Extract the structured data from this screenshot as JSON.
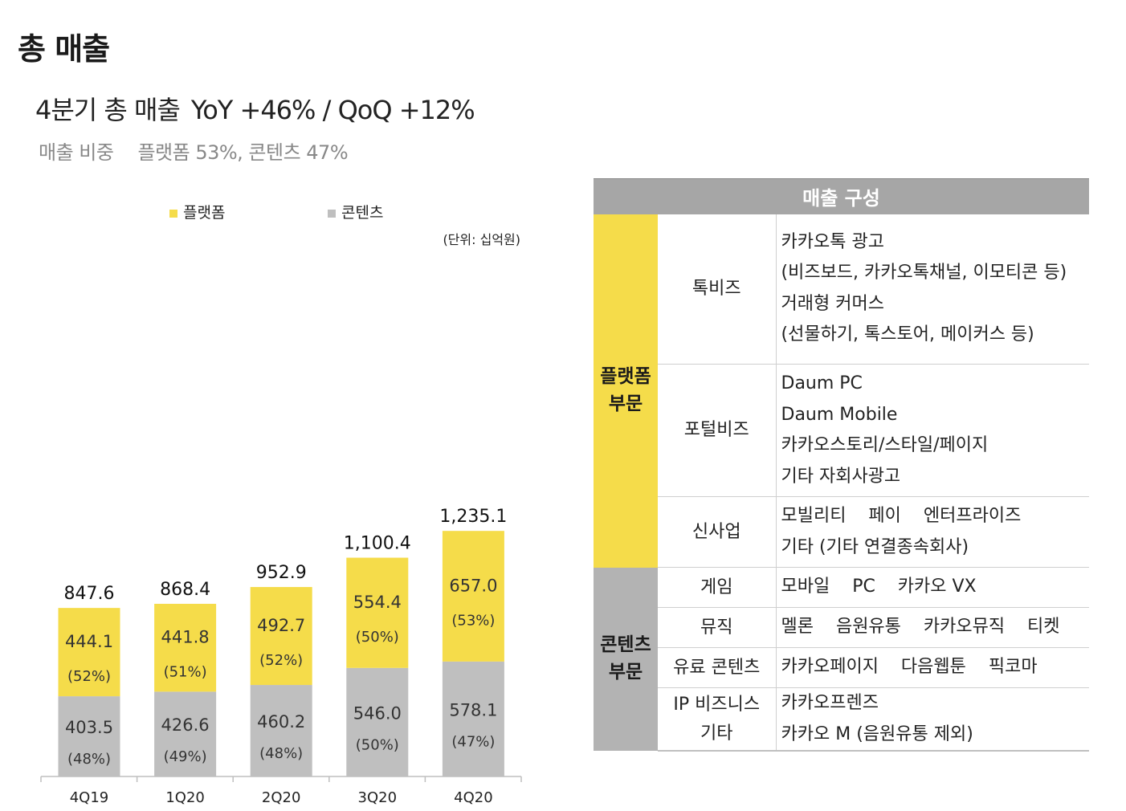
{
  "page_title": "총 매출",
  "headline": {
    "main": "4분기 총 매출",
    "growth": "YoY +46% / QoQ +12%"
  },
  "subline": {
    "label": "매출 비중",
    "value": "플랫폼 53%, 콘텐츠 47%"
  },
  "colors": {
    "platform": "#f5dc4a",
    "content": "#bfbfbf",
    "header": "#a6a6a6"
  },
  "chart_data": {
    "type": "bar",
    "stacked": true,
    "unit_note": "(단위: 십억원)",
    "categories": [
      "4Q19",
      "1Q20",
      "2Q20",
      "3Q20",
      "4Q20"
    ],
    "series": [
      {
        "name": "플랫폼",
        "values": [
          444.1,
          441.8,
          492.7,
          554.4,
          657.0
        ],
        "labels": [
          "444.1",
          "441.8",
          "492.7",
          "554.4",
          "657.0"
        ],
        "shares": [
          "(52%)",
          "(51%)",
          "(52%)",
          "(50%)",
          "(53%)"
        ]
      },
      {
        "name": "콘텐츠",
        "values": [
          403.5,
          426.6,
          460.2,
          546.0,
          578.1
        ],
        "labels": [
          "403.5",
          "426.6",
          "460.2",
          "546.0",
          "578.1"
        ],
        "shares": [
          "(48%)",
          "(49%)",
          "(48%)",
          "(50%)",
          "(47%)"
        ]
      }
    ],
    "totals": [
      847.6,
      868.4,
      952.9,
      1100.4,
      1235.1
    ],
    "total_labels": [
      "847.6",
      "868.4",
      "952.9",
      "1,100.4",
      "1,235.1"
    ],
    "ylim": [
      0,
      1400
    ],
    "legend_position": "top",
    "grid": false
  },
  "composition": {
    "title": "매출 구성",
    "segments": [
      {
        "name_lines": [
          "플랫폼",
          "부문"
        ],
        "rows": [
          {
            "business": [
              "톡비즈"
            ],
            "details": [
              "카카오톡 광고",
              "(비즈보드, 카카오톡채널, 이모티콘 등)",
              "거래형 커머스",
              "(선물하기, 톡스토어, 메이커스 등)"
            ]
          },
          {
            "business": [
              "포털비즈"
            ],
            "details": [
              "Daum PC",
              "Daum Mobile",
              "카카오스토리/스타일/페이지",
              "기타 자회사광고"
            ]
          },
          {
            "business": [
              "신사업"
            ],
            "details": [
              "모빌리티    페이    엔터프라이즈",
              "기타 (기타 연결종속회사)"
            ]
          }
        ]
      },
      {
        "name_lines": [
          "콘텐츠",
          "부문"
        ],
        "rows": [
          {
            "business": [
              "게임"
            ],
            "details": [
              "모바일    PC    카카오 VX"
            ]
          },
          {
            "business": [
              "뮤직"
            ],
            "details": [
              "멜론    음원유통    카카오뮤직    티켓"
            ]
          },
          {
            "business": [
              "유료 콘텐츠"
            ],
            "details": [
              "카카오페이지    다음웹툰    픽코마"
            ]
          },
          {
            "business": [
              "IP 비즈니스",
              "기타"
            ],
            "details": [
              "카카오프렌즈",
              "카카오 M (음원유통 제외)"
            ]
          }
        ]
      }
    ]
  }
}
